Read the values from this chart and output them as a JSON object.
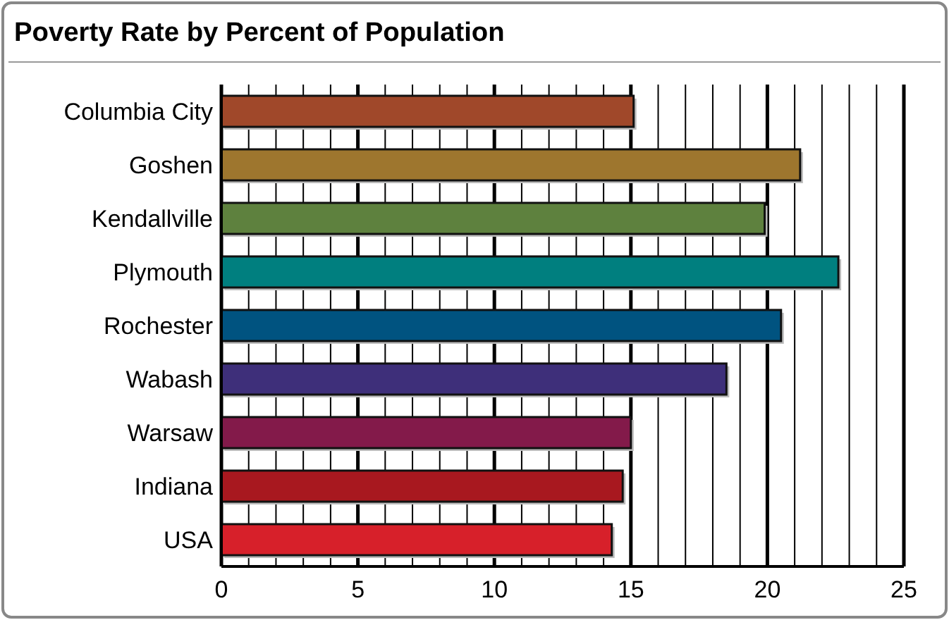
{
  "chart_data": {
    "type": "bar",
    "orientation": "horizontal",
    "title": "Poverty Rate by Percent of Population",
    "categories": [
      "Columbia City",
      "Goshen",
      "Kendallville",
      "Plymouth",
      "Rochester",
      "Wabash",
      "Warsaw",
      "Indiana",
      "USA"
    ],
    "values": [
      15.1,
      21.2,
      19.9,
      22.6,
      20.5,
      18.5,
      15.0,
      14.7,
      14.3
    ],
    "colors": [
      "#a0482a",
      "#9e762e",
      "#5e813e",
      "#007f7f",
      "#005380",
      "#3e2f7a",
      "#831a4a",
      "#a8181f",
      "#d7202a"
    ],
    "xlim": [
      0,
      25
    ],
    "xticks": [
      0,
      {
        "value": 1,
        "label": null
      },
      {
        "value": 2,
        "label": null
      },
      {
        "value": 3,
        "label": null
      },
      {
        "value": 4,
        "label": null
      },
      5,
      {
        "value": 6,
        "label": null
      },
      {
        "value": 7,
        "label": null
      },
      {
        "value": 8,
        "label": null
      },
      {
        "value": 9,
        "label": null
      },
      10,
      {
        "value": 11,
        "label": null
      },
      {
        "value": 12,
        "label": null
      },
      {
        "value": 13,
        "label": null
      },
      {
        "value": 14,
        "label": null
      },
      15,
      {
        "value": 16,
        "label": null
      },
      {
        "value": 17,
        "label": null
      },
      {
        "value": 18,
        "label": null
      },
      {
        "value": 19,
        "label": null
      },
      20,
      {
        "value": 21,
        "label": null
      },
      {
        "value": 22,
        "label": null
      },
      {
        "value": 23,
        "label": null
      },
      {
        "value": 24,
        "label": null
      },
      25
    ],
    "grid": "x"
  }
}
